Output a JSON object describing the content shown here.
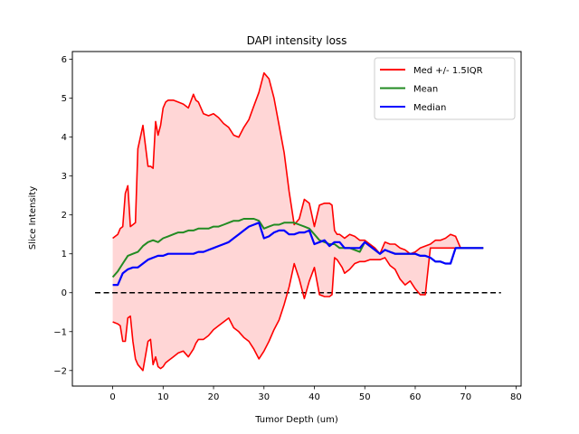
{
  "chart_data": {
    "type": "line",
    "title": "DAPI intensity loss",
    "xlabel": "Tumor Depth (um)",
    "ylabel": "Slice Intensity",
    "xlim": [
      -8,
      81
    ],
    "ylim": [
      -2.4,
      6.2
    ],
    "xticks": [
      0,
      10,
      20,
      30,
      40,
      50,
      60,
      70,
      80
    ],
    "yticks": [
      -2,
      -1,
      0,
      1,
      2,
      3,
      4,
      5,
      6
    ],
    "legend_position": "top-right",
    "grid": false,
    "colors": {
      "upper": "#ff0000",
      "lower": "#ff0000",
      "band_fill": "#ffd6d6",
      "mean": "#228b22",
      "median": "#0000ff",
      "zero_line": "#000000"
    },
    "legend": [
      "Med +/- 1.5IQR",
      "Mean",
      "Median"
    ],
    "zero_line": {
      "y": 0,
      "x_range": [
        -3.5,
        77
      ],
      "style": "dashed"
    },
    "series": [
      {
        "name": "Med +/- 1.5IQR",
        "role": "upper",
        "x": [
          0,
          1,
          1.5,
          2,
          2.5,
          3,
          3.5,
          4,
          4.5,
          5,
          6,
          7,
          7.5,
          8,
          8.5,
          9,
          9.5,
          10,
          10.5,
          11,
          11.5,
          12,
          13,
          14,
          15,
          16,
          16.5,
          17,
          18,
          19,
          20,
          21,
          22,
          23,
          24,
          25,
          26,
          27,
          28,
          29,
          30,
          31,
          32,
          33,
          34,
          35,
          36,
          37,
          38,
          39,
          40,
          41,
          42,
          43,
          43.5,
          44,
          44.5,
          45,
          45.5,
          46,
          47,
          48,
          49,
          50,
          51,
          52,
          53,
          54,
          55,
          56,
          57,
          58,
          59,
          60,
          61,
          62,
          63,
          64,
          65,
          66,
          67,
          68,
          69,
          70,
          71,
          72,
          73,
          73.5
        ],
        "values": [
          1.4,
          1.5,
          1.65,
          1.7,
          2.55,
          2.75,
          1.7,
          1.75,
          1.8,
          3.7,
          4.3,
          3.25,
          3.25,
          3.2,
          4.4,
          4.05,
          4.3,
          4.75,
          4.9,
          4.95,
          4.95,
          4.95,
          4.9,
          4.85,
          4.75,
          5.1,
          4.95,
          4.9,
          4.6,
          4.55,
          4.6,
          4.5,
          4.35,
          4.25,
          4.05,
          4.0,
          4.25,
          4.45,
          4.8,
          5.15,
          5.65,
          5.5,
          5.0,
          4.3,
          3.6,
          2.6,
          1.75,
          1.9,
          2.4,
          2.3,
          1.7,
          2.25,
          2.3,
          2.3,
          2.25,
          1.6,
          1.5,
          1.5,
          1.45,
          1.4,
          1.5,
          1.45,
          1.35,
          1.35,
          1.25,
          1.15,
          1.0,
          1.3,
          1.25,
          1.25,
          1.15,
          1.1,
          1.0,
          1.05,
          1.15,
          1.2,
          1.25,
          1.35,
          1.35,
          1.4,
          1.5,
          1.45,
          1.15,
          1.15,
          1.15,
          1.15,
          1.15,
          1.15
        ],
        "note": ""
      },
      {
        "name": "Med +/- 1.5IQR",
        "role": "lower",
        "x": [
          0,
          1,
          1.5,
          2,
          2.5,
          3,
          3.5,
          4,
          4.5,
          5,
          6,
          7,
          7.5,
          8,
          8.5,
          9,
          9.5,
          10,
          10.5,
          11,
          11.5,
          12,
          13,
          14,
          15,
          16,
          16.5,
          17,
          18,
          19,
          20,
          21,
          22,
          23,
          24,
          25,
          26,
          27,
          28,
          29,
          30,
          31,
          32,
          33,
          34,
          35,
          36,
          37,
          38,
          39,
          40,
          41,
          42,
          43,
          43.5,
          44,
          44.5,
          45,
          45.5,
          46,
          47,
          48,
          49,
          50,
          51,
          52,
          53,
          54,
          55,
          56,
          57,
          58,
          59,
          60,
          61,
          62,
          63,
          64,
          65,
          66,
          67,
          68,
          69,
          70,
          71,
          72,
          73,
          73.5
        ],
        "values": [
          -0.75,
          -0.8,
          -0.85,
          -1.25,
          -1.25,
          -0.65,
          -0.6,
          -1.25,
          -1.7,
          -1.85,
          -2.0,
          -1.25,
          -1.2,
          -1.85,
          -1.65,
          -1.9,
          -1.95,
          -1.9,
          -1.8,
          -1.75,
          -1.7,
          -1.65,
          -1.55,
          -1.5,
          -1.65,
          -1.45,
          -1.3,
          -1.2,
          -1.2,
          -1.1,
          -0.95,
          -0.85,
          -0.75,
          -0.65,
          -0.9,
          -1.0,
          -1.15,
          -1.25,
          -1.45,
          -1.7,
          -1.5,
          -1.25,
          -0.95,
          -0.7,
          -0.3,
          0.15,
          0.75,
          0.35,
          -0.15,
          0.3,
          0.65,
          -0.05,
          -0.1,
          -0.1,
          -0.05,
          0.9,
          0.85,
          0.75,
          0.65,
          0.5,
          0.6,
          0.75,
          0.8,
          0.8,
          0.85,
          0.85,
          0.85,
          0.9,
          0.7,
          0.6,
          0.35,
          0.2,
          0.3,
          0.1,
          -0.05,
          -0.05,
          1.15,
          1.15,
          1.15,
          1.15,
          1.15,
          1.15,
          1.15,
          1.15,
          1.15,
          1.15,
          1.15,
          1.15
        ],
        "note": ""
      },
      {
        "name": "Mean",
        "role": "mean",
        "x": [
          0,
          1,
          2,
          3,
          4,
          5,
          6,
          7,
          8,
          9,
          10,
          11,
          12,
          13,
          14,
          15,
          16,
          17,
          18,
          19,
          20,
          21,
          22,
          23,
          24,
          25,
          26,
          27,
          28,
          29,
          30,
          31,
          32,
          33,
          34,
          35,
          36,
          37,
          38,
          39,
          40,
          41,
          42,
          43,
          44,
          45,
          46,
          47,
          48,
          49,
          50,
          51,
          52,
          53,
          54,
          55,
          56,
          57,
          58,
          59,
          60,
          61,
          62,
          63,
          64,
          65,
          66,
          67,
          68,
          69,
          70,
          71,
          72,
          73,
          73.5
        ],
        "values": [
          0.4,
          0.55,
          0.75,
          0.95,
          1.0,
          1.05,
          1.2,
          1.3,
          1.35,
          1.3,
          1.4,
          1.45,
          1.5,
          1.55,
          1.55,
          1.6,
          1.6,
          1.65,
          1.65,
          1.65,
          1.7,
          1.7,
          1.75,
          1.8,
          1.85,
          1.85,
          1.9,
          1.9,
          1.9,
          1.85,
          1.65,
          1.7,
          1.75,
          1.75,
          1.8,
          1.8,
          1.8,
          1.75,
          1.7,
          1.65,
          1.5,
          1.35,
          1.3,
          1.25,
          1.25,
          1.15,
          1.15,
          1.15,
          1.1,
          1.05,
          1.3,
          1.2,
          1.1,
          1.0,
          1.1,
          1.05,
          1.0,
          1.0,
          1.0,
          1.0,
          1.0,
          0.95,
          0.95,
          0.9,
          0.8,
          0.8,
          0.75,
          0.75,
          1.15,
          1.15,
          1.15,
          1.15,
          1.15,
          1.15,
          1.15
        ]
      },
      {
        "name": "Median",
        "role": "median",
        "x": [
          0,
          1,
          2,
          3,
          4,
          5,
          6,
          7,
          8,
          9,
          10,
          11,
          12,
          13,
          14,
          15,
          16,
          17,
          18,
          19,
          20,
          21,
          22,
          23,
          24,
          25,
          26,
          27,
          28,
          29,
          30,
          31,
          32,
          33,
          34,
          35,
          36,
          37,
          38,
          39,
          40,
          41,
          42,
          43,
          44,
          45,
          46,
          47,
          48,
          49,
          50,
          51,
          52,
          53,
          54,
          55,
          56,
          57,
          58,
          59,
          60,
          61,
          62,
          63,
          64,
          65,
          66,
          67,
          68,
          69,
          70,
          71,
          72,
          73,
          73.5
        ],
        "values": [
          0.2,
          0.2,
          0.5,
          0.6,
          0.65,
          0.65,
          0.75,
          0.85,
          0.9,
          0.95,
          0.95,
          1.0,
          1.0,
          1.0,
          1.0,
          1.0,
          1.0,
          1.05,
          1.05,
          1.1,
          1.15,
          1.2,
          1.25,
          1.3,
          1.4,
          1.5,
          1.6,
          1.7,
          1.75,
          1.8,
          1.4,
          1.45,
          1.55,
          1.6,
          1.6,
          1.5,
          1.5,
          1.55,
          1.55,
          1.6,
          1.25,
          1.3,
          1.35,
          1.2,
          1.3,
          1.3,
          1.15,
          1.15,
          1.15,
          1.15,
          1.3,
          1.2,
          1.1,
          1.0,
          1.1,
          1.05,
          1.0,
          1.0,
          1.0,
          1.0,
          1.0,
          0.95,
          0.95,
          0.9,
          0.8,
          0.8,
          0.75,
          0.75,
          1.15,
          1.15,
          1.15,
          1.15,
          1.15,
          1.15,
          1.15
        ]
      }
    ]
  }
}
